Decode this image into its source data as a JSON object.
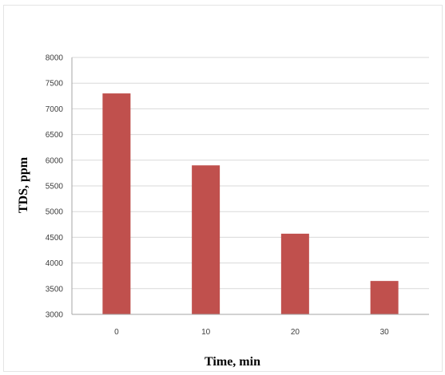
{
  "chart_data": {
    "type": "bar",
    "categories": [
      "0",
      "10",
      "20",
      "30"
    ],
    "values": [
      7300,
      5900,
      4570,
      3650
    ],
    "xlabel": "Time, min",
    "ylabel": "TDS, ppm",
    "ylim": [
      3000,
      8000
    ],
    "yticks": [
      "3000",
      "3500",
      "4000",
      "4500",
      "5000",
      "5500",
      "6000",
      "6500",
      "7000",
      "7500",
      "8000"
    ],
    "grid": true,
    "bar_color": "#c0504d",
    "grid_color": "#d9d9d9",
    "axis_color": "#a6a6a6"
  }
}
